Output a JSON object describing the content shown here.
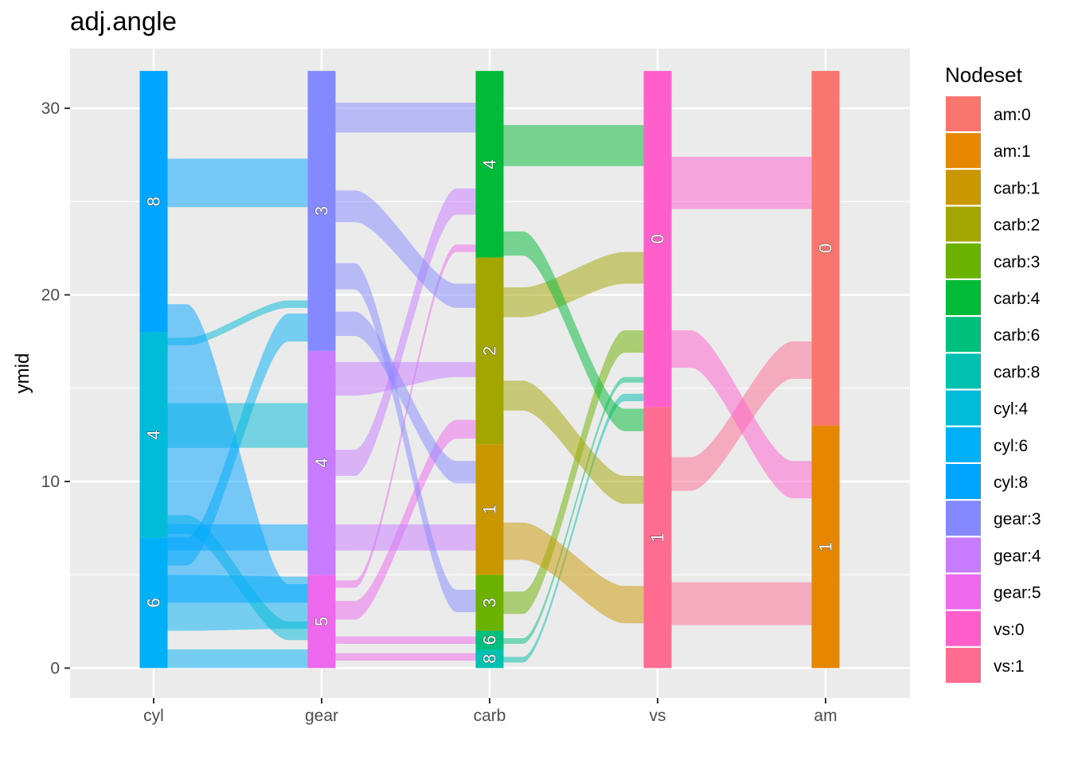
{
  "chart_data": {
    "type": "alluvial",
    "title": "adj.angle",
    "ylabel": "ymid",
    "xlabel": "",
    "ylim": [
      -1.6,
      33.2
    ],
    "yticks": [
      0,
      10,
      20,
      30
    ],
    "axes": [
      "cyl",
      "gear",
      "carb",
      "vs",
      "am"
    ],
    "legend": {
      "title": "Nodeset",
      "position": "right",
      "items": [
        {
          "label": "am:0",
          "color": "#F8766D"
        },
        {
          "label": "am:1",
          "color": "#E58700"
        },
        {
          "label": "carb:1",
          "color": "#C99800"
        },
        {
          "label": "carb:2",
          "color": "#A3A500"
        },
        {
          "label": "carb:3",
          "color": "#6BB100"
        },
        {
          "label": "carb:4",
          "color": "#00BA38"
        },
        {
          "label": "carb:6",
          "color": "#00BF7D"
        },
        {
          "label": "carb:8",
          "color": "#00C0AF"
        },
        {
          "label": "cyl:4",
          "color": "#00BCD8"
        },
        {
          "label": "cyl:6",
          "color": "#00B0F6"
        },
        {
          "label": "cyl:8",
          "color": "#00A5FF"
        },
        {
          "label": "gear:3",
          "color": "#8589FF"
        },
        {
          "label": "gear:4",
          "color": "#C77CFF"
        },
        {
          "label": "gear:5",
          "color": "#ED68ED"
        },
        {
          "label": "vs:0",
          "color": "#FF5FCB"
        },
        {
          "label": "vs:1",
          "color": "#FF6C91"
        }
      ]
    },
    "nodes": [
      {
        "axis": 0,
        "label": "6",
        "y0": 0,
        "y1": 7,
        "color": "#00B0F6"
      },
      {
        "axis": 0,
        "label": "4",
        "y0": 7,
        "y1": 18,
        "color": "#00BCD8"
      },
      {
        "axis": 0,
        "label": "8",
        "y0": 18,
        "y1": 32,
        "color": "#00A5FF"
      },
      {
        "axis": 1,
        "label": "5",
        "y0": 0,
        "y1": 5,
        "color": "#ED68ED"
      },
      {
        "axis": 1,
        "label": "4",
        "y0": 5,
        "y1": 17,
        "color": "#C77CFF"
      },
      {
        "axis": 1,
        "label": "3",
        "y0": 17,
        "y1": 32,
        "color": "#8589FF"
      },
      {
        "axis": 2,
        "label": "8",
        "y0": 0,
        "y1": 1,
        "color": "#00C0AF"
      },
      {
        "axis": 2,
        "label": "6",
        "y0": 1,
        "y1": 2,
        "color": "#00BF7D"
      },
      {
        "axis": 2,
        "label": "3",
        "y0": 2,
        "y1": 5,
        "color": "#6BB100"
      },
      {
        "axis": 2,
        "label": "1",
        "y0": 5,
        "y1": 12,
        "color": "#C99800"
      },
      {
        "axis": 2,
        "label": "2",
        "y0": 12,
        "y1": 22,
        "color": "#A3A500"
      },
      {
        "axis": 2,
        "label": "4",
        "y0": 22,
        "y1": 32,
        "color": "#00BA38"
      },
      {
        "axis": 3,
        "label": "1",
        "y0": 0,
        "y1": 14,
        "color": "#FF6C91"
      },
      {
        "axis": 3,
        "label": "0",
        "y0": 14,
        "y1": 32,
        "color": "#FF5FCB"
      },
      {
        "axis": 4,
        "label": "1",
        "y0": 0,
        "y1": 13,
        "color": "#E58700"
      },
      {
        "axis": 4,
        "label": "0",
        "y0": 13,
        "y1": 32,
        "color": "#F8766D"
      }
    ],
    "flows": [
      {
        "from": 0,
        "to": 1,
        "ys0": 0,
        "ye0": 1,
        "yt0": 0,
        "yt1": 1,
        "color": "#00B0F6"
      },
      {
        "from": 0,
        "to": 1,
        "ys0": 2,
        "ye0": 5,
        "yt0": 2.1,
        "yt1": 4.9,
        "color": "#00B0F6"
      },
      {
        "from": 0,
        "to": 1,
        "ys0": 5.5,
        "ye0": 7,
        "yt0": 17.5,
        "yt1": 19,
        "color": "#00B0F6"
      },
      {
        "from": 0,
        "to": 1,
        "ys0": 7.2,
        "ye0": 8.2,
        "yt0": 1.5,
        "yt1": 2.5,
        "color": "#00BCD8"
      },
      {
        "from": 0,
        "to": 1,
        "ys0": 11.8,
        "ye0": 14.2,
        "yt0": 11.8,
        "yt1": 14.2,
        "color": "#00BCD8"
      },
      {
        "from": 0,
        "to": 1,
        "ys0": 17.3,
        "ye0": 17.7,
        "yt0": 19.3,
        "yt1": 19.7,
        "color": "#00BCD8"
      },
      {
        "from": 0,
        "to": 1,
        "ys0": 3.5,
        "ye0": 19.5,
        "yt0": 3.5,
        "yt1": 4.5,
        "color": "#00A5FF",
        "cross": true
      },
      {
        "from": 0,
        "to": 1,
        "ys0": 24.7,
        "ye0": 27.3,
        "yt0": 24.7,
        "yt1": 27.3,
        "color": "#00A5FF"
      },
      {
        "from": 0,
        "to": 1,
        "ys0": 6.3,
        "ye0": 7.7,
        "yt0": 6.3,
        "yt1": 7.7,
        "color": "#00A5FF"
      },
      {
        "from": 1,
        "to": 2,
        "ys0": 0.4,
        "ye0": 0.8,
        "yt0": 0.4,
        "yt1": 0.8,
        "color": "#ED68ED"
      },
      {
        "from": 1,
        "to": 2,
        "ys0": 1.3,
        "ye0": 1.7,
        "yt0": 1.3,
        "yt1": 1.7,
        "color": "#ED68ED"
      },
      {
        "from": 1,
        "to": 2,
        "ys0": 2.6,
        "ye0": 3.6,
        "yt0": 12.3,
        "yt1": 13.3,
        "color": "#ED68ED"
      },
      {
        "from": 1,
        "to": 2,
        "ys0": 4.3,
        "ye0": 4.7,
        "yt0": 22.3,
        "yt1": 22.7,
        "color": "#ED68ED"
      },
      {
        "from": 1,
        "to": 2,
        "ys0": 6.3,
        "ye0": 7.7,
        "yt0": 6.3,
        "yt1": 7.7,
        "color": "#C77CFF"
      },
      {
        "from": 1,
        "to": 2,
        "ys0": 10.3,
        "ye0": 11.7,
        "yt0": 24.3,
        "yt1": 25.7,
        "color": "#C77CFF"
      },
      {
        "from": 1,
        "to": 2,
        "ys0": 14.6,
        "ye0": 16.4,
        "yt0": 15.6,
        "yt1": 16.4,
        "color": "#C77CFF"
      },
      {
        "from": 1,
        "to": 2,
        "ys0": 17.8,
        "ye0": 19.1,
        "yt0": 9.9,
        "yt1": 11.1,
        "color": "#8589FF"
      },
      {
        "from": 1,
        "to": 2,
        "ys0": 20.3,
        "ye0": 21.7,
        "yt0": 3,
        "yt1": 4.2,
        "color": "#8589FF"
      },
      {
        "from": 1,
        "to": 2,
        "ys0": 23.9,
        "ye0": 25.6,
        "yt0": 19.3,
        "yt1": 20.6,
        "color": "#8589FF"
      },
      {
        "from": 1,
        "to": 2,
        "ys0": 28.7,
        "ye0": 30.3,
        "yt0": 28.7,
        "yt1": 30.3,
        "color": "#8589FF"
      },
      {
        "from": 2,
        "to": 3,
        "ys0": 0.3,
        "ye0": 0.6,
        "yt0": 14.3,
        "yt1": 14.7,
        "color": "#00C0AF"
      },
      {
        "from": 2,
        "to": 3,
        "ys0": 1.3,
        "ye0": 1.6,
        "yt0": 15.3,
        "yt1": 15.6,
        "color": "#00BF7D"
      },
      {
        "from": 2,
        "to": 3,
        "ys0": 2.9,
        "ye0": 4.1,
        "yt0": 16.9,
        "yt1": 18.1,
        "color": "#6BB100"
      },
      {
        "from": 2,
        "to": 3,
        "ys0": 5.8,
        "ye0": 7.8,
        "yt0": 2.4,
        "yt1": 4.4,
        "color": "#C99800"
      },
      {
        "from": 2,
        "to": 3,
        "ys0": 13.8,
        "ye0": 15.4,
        "yt0": 8.8,
        "yt1": 10.3,
        "color": "#A3A500"
      },
      {
        "from": 2,
        "to": 3,
        "ys0": 18.8,
        "ye0": 20.4,
        "yt0": 20.6,
        "yt1": 22.3,
        "color": "#A3A500"
      },
      {
        "from": 2,
        "to": 3,
        "ys0": 22.1,
        "ye0": 23.4,
        "yt0": 12.7,
        "yt1": 13.9,
        "color": "#00BA38"
      },
      {
        "from": 2,
        "to": 3,
        "ys0": 26.9,
        "ye0": 29.1,
        "yt0": 26.9,
        "yt1": 29.1,
        "color": "#00BA38"
      },
      {
        "from": 3,
        "to": 4,
        "ys0": 2.3,
        "ye0": 4.6,
        "yt0": 2.3,
        "yt1": 4.6,
        "color": "#FF6C91"
      },
      {
        "from": 3,
        "to": 4,
        "ys0": 9.5,
        "ye0": 11.3,
        "yt0": 15.5,
        "yt1": 17.5,
        "color": "#FF6C91"
      },
      {
        "from": 3,
        "to": 4,
        "ys0": 16.1,
        "ye0": 18.1,
        "yt0": 9.1,
        "yt1": 11.1,
        "color": "#FF5FCB"
      },
      {
        "from": 3,
        "to": 4,
        "ys0": 24.6,
        "ye0": 27.4,
        "yt0": 24.6,
        "yt1": 27.4,
        "color": "#FF5FCB"
      }
    ]
  }
}
